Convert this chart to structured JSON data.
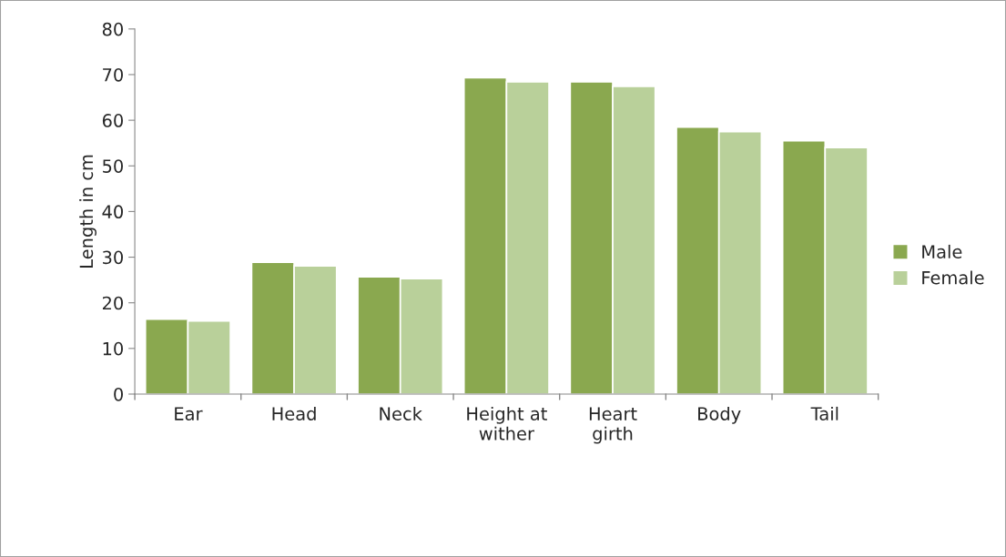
{
  "chart_data": {
    "type": "bar",
    "ylabel": "Length in cm",
    "categories": [
      "Ear",
      "Head",
      "Neck",
      "Height at\nwither",
      "Heart\ngirth",
      "Body",
      "Tail"
    ],
    "series": [
      {
        "name": "Male",
        "color": "#8aa84f",
        "values": [
          16.4,
          28.9,
          25.7,
          69.3,
          68.4,
          58.5,
          55.5
        ]
      },
      {
        "name": "Female",
        "color": "#b9d09a",
        "values": [
          16.0,
          28.1,
          25.3,
          68.4,
          67.4,
          57.5,
          54.0
        ]
      }
    ],
    "ylim": [
      0,
      80
    ],
    "yticks": [
      0,
      10,
      20,
      30,
      40,
      50,
      60,
      70,
      80
    ],
    "grid": false,
    "legend": "right"
  }
}
